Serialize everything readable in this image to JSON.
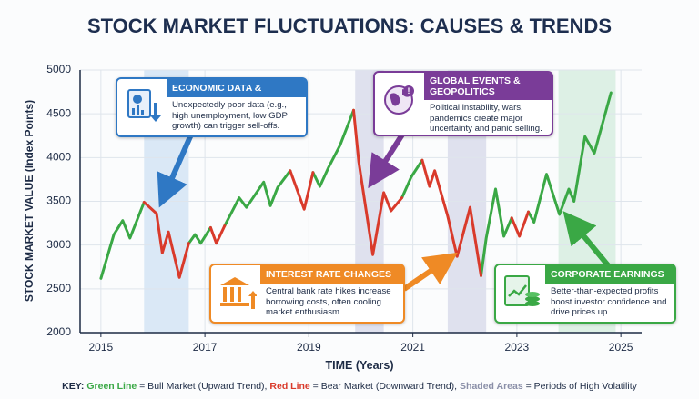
{
  "chart_data": {
    "type": "line",
    "title": "STOCK MARKET FLUCTUATIONS: CAUSES & TRENDS",
    "x_label": "TIME (Years)",
    "y_label": "STOCK MARKET VALUE (Index Points)",
    "x": [
      2015.0,
      2015.25,
      2015.42,
      2015.56,
      2015.83,
      2016.07,
      2016.18,
      2016.3,
      2016.51,
      2016.69,
      2016.81,
      2016.92,
      2017.11,
      2017.22,
      2017.38,
      2017.66,
      2017.8,
      2018.13,
      2018.26,
      2018.4,
      2018.64,
      2018.91,
      2019.08,
      2019.21,
      2019.38,
      2019.6,
      2019.86,
      2019.96,
      2020.23,
      2020.44,
      2020.58,
      2020.79,
      2020.97,
      2021.18,
      2021.32,
      2021.42,
      2021.67,
      2021.85,
      2022.1,
      2022.31,
      2022.41,
      2022.59,
      2022.75,
      2022.9,
      2023.05,
      2023.22,
      2023.33,
      2023.57,
      2023.82,
      2024.0,
      2024.1,
      2024.31,
      2024.49,
      2024.81
    ],
    "series": [
      {
        "color": "#3aa845",
        "values": [
          2620,
          3120,
          3280,
          3080,
          3490,
          null,
          null,
          null,
          null,
          3020,
          3120,
          3020,
          3200,
          null,
          3220,
          3540,
          3430,
          3720,
          3450,
          3660,
          3850,
          null,
          3830,
          3670,
          3890,
          4140,
          4540,
          null,
          null,
          null,
          null,
          3540,
          3780,
          3970,
          null,
          null,
          null,
          null,
          null,
          2650,
          3080,
          3640,
          3100,
          3310,
          null,
          3380,
          3260,
          3810,
          3350,
          3640,
          3500,
          4240,
          4050,
          4740
        ]
      },
      {
        "color": "#d93a2b",
        "values": [
          null,
          null,
          null,
          null,
          3490,
          3360,
          2910,
          3150,
          2630,
          3020,
          null,
          null,
          3200,
          3020,
          3220,
          null,
          null,
          null,
          null,
          null,
          3850,
          3410,
          3830,
          null,
          null,
          null,
          4540,
          3950,
          2890,
          3600,
          3390,
          3540,
          null,
          3970,
          3670,
          3850,
          3330,
          2870,
          3430,
          2650,
          null,
          null,
          null,
          3310,
          3100,
          3380,
          null,
          null,
          null,
          null,
          null,
          null,
          null,
          null
        ]
      }
    ],
    "xlim": [
      2014.6,
      2025.4
    ],
    "xticks": [
      2015,
      2017,
      2019,
      2021,
      2023,
      2025
    ],
    "ylim": [
      2000,
      5000
    ],
    "yticks": [
      2000,
      2500,
      3000,
      3500,
      4000,
      4500,
      5000
    ],
    "grid": true,
    "shaded_areas": [
      {
        "from": 2015.83,
        "to": 2016.69,
        "color": "#cfe2f3"
      },
      {
        "from": 2019.89,
        "to": 2020.44,
        "color": "#d6d8e8"
      },
      {
        "from": 2021.67,
        "to": 2022.41,
        "color": "#d6d8e8"
      },
      {
        "from": 2023.8,
        "to": 2024.9,
        "color": "#d3ecdc"
      }
    ],
    "annotations": [
      {
        "title": "ECONOMIC DATA & REPORTS",
        "text": "Unexpectedly poor data (e.g., high unemployment, low GDP growth) can trigger sell-offs.",
        "color": "#2f78c4"
      },
      {
        "title": "GLOBAL EVENTS & GEOPOLITICS",
        "text": "Political instability, wars, pandemics create major uncertainty and panic selling.",
        "color": "#7a3c98"
      },
      {
        "title": "INTEREST RATE CHANGES",
        "text": "Central bank rate hikes increase borrowing costs, often cooling market enthusiasm.",
        "color": "#ef8a25"
      },
      {
        "title": "CORPORATE EARNINGS",
        "text": "Better-than-expected profits boost investor confidence and drive prices up.",
        "color": "#3aa845"
      }
    ],
    "key": {
      "label": "KEY:",
      "items": [
        {
          "term": "Green Line",
          "text": " = Bull Market (Upward Trend), ",
          "color": "#3aa845"
        },
        {
          "term": "Red Line",
          "text": " = Bear Market (Downward Trend), ",
          "color": "#d93a2b"
        },
        {
          "term": "Shaded Areas",
          "text": " = Periods of High Volatility",
          "color": "#8a8fa8"
        }
      ]
    }
  }
}
